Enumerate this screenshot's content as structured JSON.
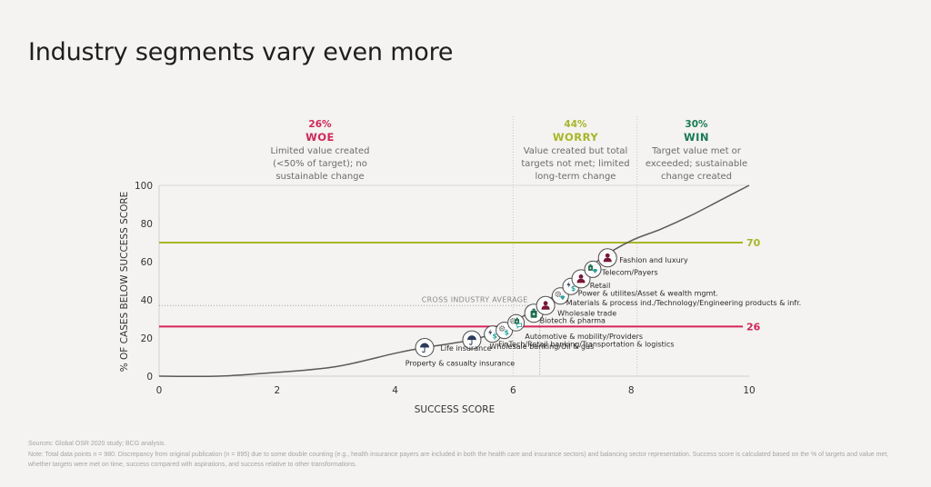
{
  "page": {
    "title": "Industry segments vary even more",
    "sources": "Sources: Global OSR 2020 study; BCG analysis.",
    "note": "Note: Total data points n = 980. Discrepancy from original publication (n = 895) due to some double counting (e.g., health insurance payers are included in both the health care and insurance sectors) and balancing sector representation. Success score is calculated based on the % of targets and value met, whether targets were met on time, success compared with aspirations, and success relative to other transformations."
  },
  "zones": [
    {
      "pct": "26%",
      "name": "WOE",
      "desc": [
        "Limited value created",
        "(<50% of target); no",
        "sustainable change"
      ],
      "color": "#d6245a"
    },
    {
      "pct": "44%",
      "name": "WORRY",
      "desc": [
        "Value created but total",
        "targets not met; limited",
        "long-term change"
      ],
      "color": "#a8b625"
    },
    {
      "pct": "30%",
      "name": "WIN",
      "desc": [
        "Target value met or",
        "exceeded; sustainable",
        "change created"
      ],
      "color": "#197a56"
    }
  ],
  "colors": {
    "woe": "#d6245a",
    "worry": "#a8b625",
    "win": "#197a56",
    "curve": "#5a5a5a",
    "icon_navy": "#2d3a5e",
    "icon_maroon": "#7a1535",
    "icon_green": "#1b6b4a",
    "icon_teal": "#2aa39a",
    "icon_gray": "#777777"
  },
  "chart_data": {
    "type": "line",
    "title": "Industry segments vary even more",
    "xlabel": "SUCCESS SCORE",
    "ylabel": "% OF CASES BELOW SUCCESS SCORE",
    "xlim": [
      0,
      10
    ],
    "ylim": [
      0,
      100
    ],
    "xticks": [
      "0",
      "2",
      "4",
      "6",
      "8",
      "10"
    ],
    "yticks": [
      "0",
      "20",
      "40",
      "60",
      "80",
      "100"
    ],
    "grid": false,
    "series": [
      {
        "name": "Cumulative distribution",
        "x": [
          0,
          1,
          2,
          3,
          4,
          4.5,
          5.3,
          5.8,
          6.1,
          6.5,
          7.0,
          7.5,
          8.0,
          8.5,
          9.0,
          9.5,
          10
        ],
        "y": [
          0,
          0,
          2,
          5,
          12,
          15,
          19,
          24,
          30,
          38,
          49,
          62,
          71,
          77,
          84,
          92,
          100
        ]
      }
    ],
    "reference_lines": [
      {
        "label": "70",
        "y": 70,
        "color": "#a8b625"
      },
      {
        "label": "26",
        "y": 26,
        "color": "#d6245a"
      },
      {
        "label": "CROSS INDUSTRY AVERAGE",
        "y": 37,
        "style": "dotted"
      }
    ],
    "zone_dividers_x": [
      6.0,
      8.1
    ],
    "average_x": 6.45,
    "markers": [
      {
        "label": "Property & casualty insurance",
        "x": 4.5,
        "y": 15,
        "icons": [
          "umbrella"
        ]
      },
      {
        "label": "Life insurance",
        "x": 5.3,
        "y": 19,
        "icons": [
          "umbrella"
        ]
      },
      {
        "label": "Wholesale banking/Oil & gas",
        "x": 5.65,
        "y": 22,
        "icons": [
          "bolt",
          "dollar"
        ]
      },
      {
        "label": "FinTech/Retail banking/Transportation & logistics",
        "x": 5.85,
        "y": 24,
        "icons": [
          "gear",
          "dollar"
        ]
      },
      {
        "label": "Automotive & mobility/Providers",
        "x": 6.05,
        "y": 28,
        "icons": [
          "gear",
          "bottle",
          "chat"
        ]
      },
      {
        "label": "Biotech & pharma",
        "x": 6.35,
        "y": 33,
        "icons": [
          "bottle"
        ]
      },
      {
        "label": "Wholesale trade",
        "x": 6.55,
        "y": 37,
        "icons": [
          "person"
        ]
      },
      {
        "label": "Materials & process ind./Technology/Engineering products & infr.",
        "x": 6.8,
        "y": 42,
        "icons": [
          "gear",
          "diamond"
        ]
      },
      {
        "label": "Power & utilites/Asset & wealth mgmt.",
        "x": 6.98,
        "y": 47,
        "icons": [
          "bolt",
          "dollar"
        ]
      },
      {
        "label": "Retail",
        "x": 7.15,
        "y": 51,
        "icons": [
          "person"
        ]
      },
      {
        "label": "Telecom/Payers",
        "x": 7.35,
        "y": 56,
        "icons": [
          "bottle",
          "diamond"
        ]
      },
      {
        "label": "Fashion and luxury",
        "x": 7.6,
        "y": 62,
        "icons": [
          "person"
        ]
      }
    ]
  }
}
